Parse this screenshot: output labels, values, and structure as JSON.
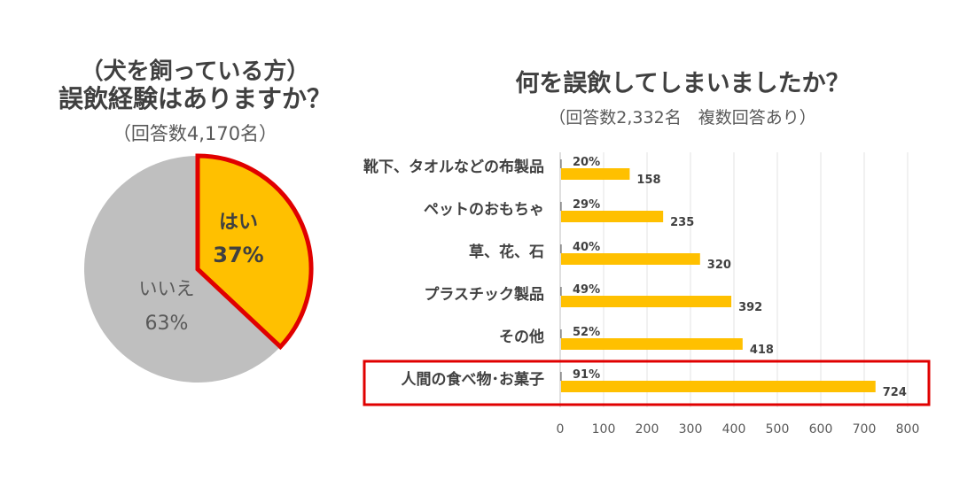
{
  "chart_data": [
    {
      "type": "pie",
      "subtitle": "（犬を飼っている方）",
      "title": "誤飲経験はありますか？",
      "note": "（回答数4,170名）",
      "slices": [
        {
          "label": "はい",
          "value": 37,
          "value_label": "37%",
          "color": "#FFC000",
          "highlighted": true
        },
        {
          "label": "いいえ",
          "value": 63,
          "value_label": "63%",
          "color": "#BFBFBF",
          "highlighted": false
        }
      ],
      "highlight_color": "#E00000"
    },
    {
      "type": "bar",
      "orientation": "horizontal",
      "title": "何を誤飲してしまいましたか？",
      "note": "（回答数2,332名　複数回答あり）",
      "categories": [
        "靴下、タオルなどの布製品",
        "ペットのおもちゃ",
        "草、花、石",
        "プラスチック製品",
        "その他",
        "人間の食べ物･お菓子"
      ],
      "values": [
        158,
        235,
        320,
        392,
        418,
        724
      ],
      "percent_labels": [
        "20%",
        "29%",
        "40%",
        "49%",
        "52%",
        "91%"
      ],
      "xlim": [
        0,
        800
      ],
      "xticks": [
        "0",
        "100",
        "200",
        "300",
        "400",
        "500",
        "600",
        "700",
        "800"
      ],
      "grid": true,
      "bar_color": "#FFC000",
      "highlight_category": "人間の食べ物･お菓子",
      "highlight_color": "#E00000"
    }
  ]
}
